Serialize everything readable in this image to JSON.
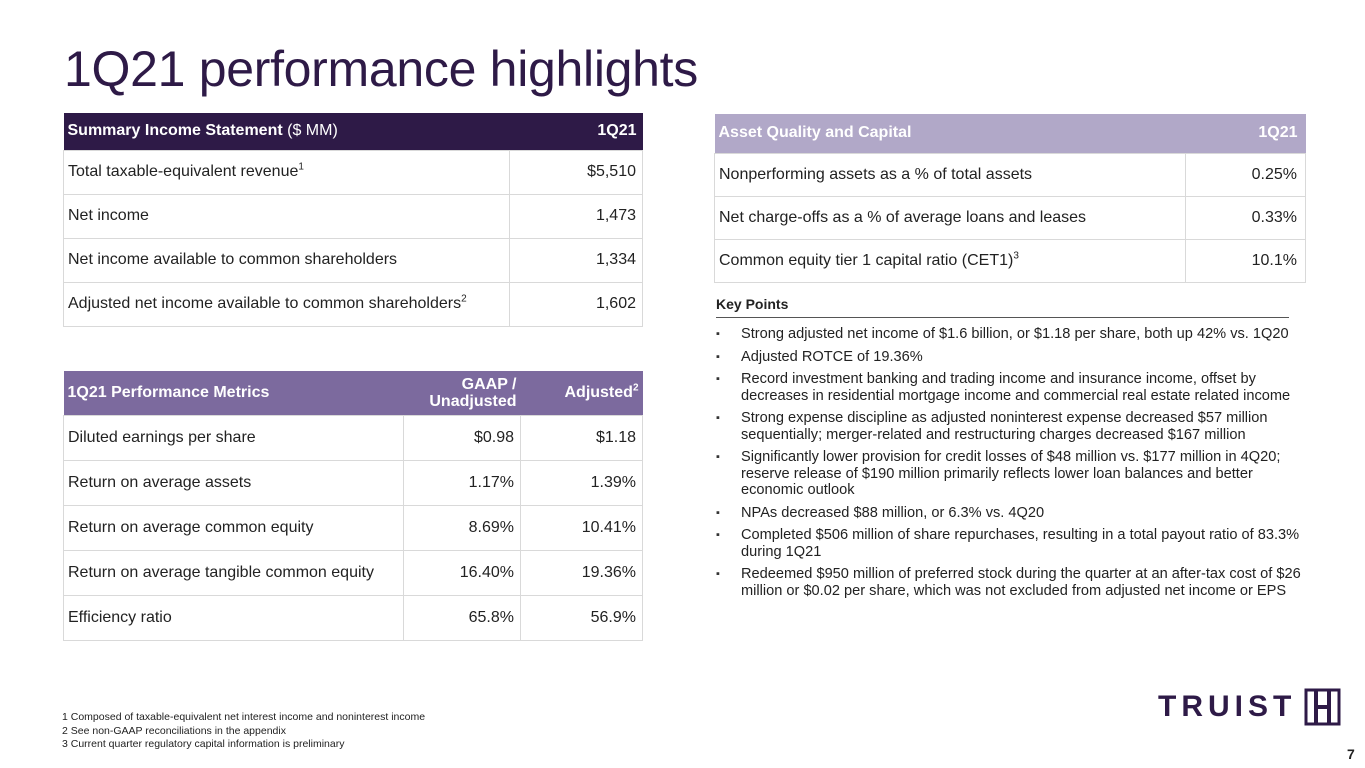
{
  "title": "1Q21 performance highlights",
  "income": {
    "header_bold": "Summary Income Statement",
    "header_rest": " ($ MM)",
    "period": "1Q21",
    "rows": [
      {
        "label": "Total taxable-equivalent revenue",
        "sup": "1",
        "value": "$5,510"
      },
      {
        "label": "Net income",
        "sup": "",
        "value": "1,473"
      },
      {
        "label": "Net income available to common shareholders",
        "sup": "",
        "value": "1,334"
      },
      {
        "label": "Adjusted net income available to common shareholders",
        "sup": "2",
        "value": "1,602"
      }
    ]
  },
  "metrics": {
    "header": "1Q21 Performance Metrics",
    "col_gaap": "GAAP / Unadjusted",
    "col_adj": "Adjusted",
    "col_adj_sup": "2",
    "rows": [
      {
        "label": "Diluted earnings per share",
        "gaap": "$0.98",
        "adj": "$1.18"
      },
      {
        "label": "Return on average assets",
        "gaap": "1.17%",
        "adj": "1.39%"
      },
      {
        "label": "Return on average common equity",
        "gaap": "8.69%",
        "adj": "10.41%"
      },
      {
        "label": "Return on average tangible common equity",
        "gaap": "16.40%",
        "adj": "19.36%"
      },
      {
        "label": "Efficiency ratio",
        "gaap": "65.8%",
        "adj": "56.9%"
      }
    ]
  },
  "asset": {
    "header": "Asset Quality and Capital",
    "period": "1Q21",
    "rows": [
      {
        "label": "Nonperforming assets as a % of total assets",
        "sup": "",
        "value": "0.25%"
      },
      {
        "label": "Net charge-offs as a % of average loans and leases",
        "sup": "",
        "value": "0.33%"
      },
      {
        "label": "Common equity tier 1 capital ratio (CET1)",
        "sup": "3",
        "value": "10.1%"
      }
    ]
  },
  "key_points": {
    "title": "Key Points",
    "items": [
      "Strong adjusted net income of $1.6 billion, or $1.18 per share, both up 42% vs. 1Q20",
      "Adjusted ROTCE of 19.36%",
      "Record investment banking and trading income and insurance income, offset by decreases in residential mortgage income and commercial real estate related income",
      "Strong expense discipline as adjusted noninterest expense decreased $57 million sequentially; merger-related and restructuring charges decreased $167 million",
      "Significantly lower provision for credit losses of $48 million vs. $177 million in 4Q20; reserve release of $190 million primarily reflects lower loan balances and better economic outlook",
      "NPAs decreased $88 million, or 6.3% vs. 4Q20",
      "Completed $506 million of share repurchases, resulting in a total payout ratio of 83.3% during 1Q21",
      "Redeemed $950 million of preferred stock during the quarter at an after-tax cost of $26 million or $0.02 per share, which was not excluded from adjusted net income or EPS"
    ]
  },
  "footnotes": [
    "1 Composed of taxable-equivalent net interest income and noninterest income",
    "2 See non-GAAP reconciliations in the appendix",
    "3 Current quarter regulatory capital information is preliminary"
  ],
  "logo_text": "TRUIST",
  "page_number": "7",
  "colors": {
    "brand_dark": "#2e1a47",
    "brand_mid": "#7c6a9e",
    "brand_light": "#b1a8c8"
  }
}
